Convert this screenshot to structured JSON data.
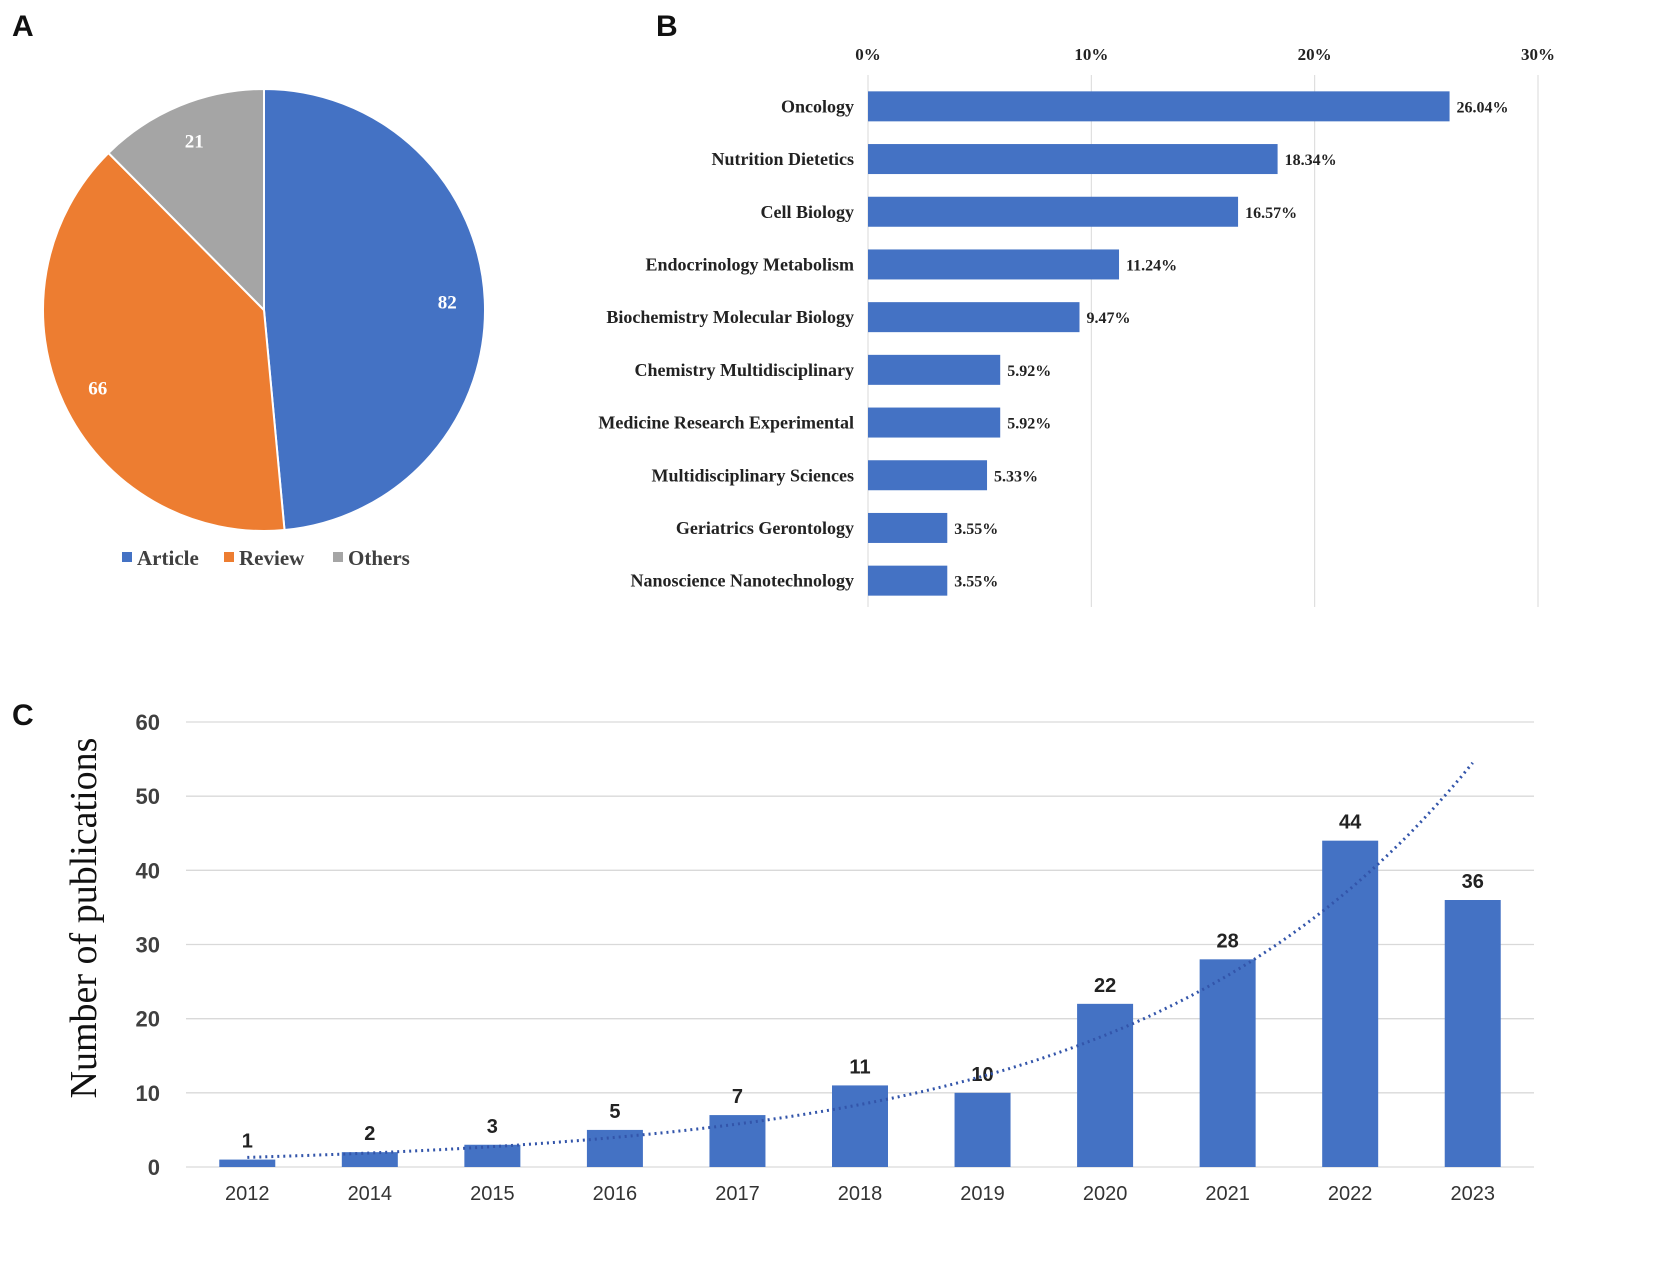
{
  "colors": {
    "blue": "#4472c4",
    "orange": "#ed7d31",
    "gray": "#a5a5a5",
    "grid": "#d9d9d9",
    "text": "#222222"
  },
  "panels": {
    "a": "A",
    "b": "B",
    "c": "C"
  },
  "chart_data": [
    {
      "id": "A",
      "type": "pie",
      "title": "",
      "slices": [
        {
          "label": "Article",
          "value": 82,
          "color": "#4472c4"
        },
        {
          "label": "Review",
          "value": 66,
          "color": "#ed7d31"
        },
        {
          "label": "Others",
          "value": 21,
          "color": "#a5a5a5"
        }
      ],
      "start_angle_deg": 0,
      "direction": "clockwise",
      "legend": "bottom"
    },
    {
      "id": "B",
      "type": "bar",
      "orientation": "horizontal",
      "title": "",
      "xlabel": "",
      "ylabel": "",
      "xlim": [
        0,
        30
      ],
      "ticks": [
        "0%",
        "10%",
        "20%",
        "30%"
      ],
      "tick_values": [
        0,
        10,
        20,
        30
      ],
      "axis_position": "top",
      "grid": true,
      "categories": [
        "Oncology",
        "Nutrition Dietetics",
        "Cell Biology",
        "Endocrinology Metabolism",
        "Biochemistry Molecular Biology",
        "Chemistry Multidisciplinary",
        "Medicine Research Experimental",
        "Multidisciplinary Sciences",
        "Geriatrics Gerontology",
        "Nanoscience Nanotechnology"
      ],
      "values": [
        26.04,
        18.34,
        16.57,
        11.24,
        9.47,
        5.92,
        5.92,
        5.33,
        3.55,
        3.55
      ],
      "value_labels": [
        "26.04%",
        "18.34%",
        "16.57%",
        "11.24%",
        "9.47%",
        "5.92%",
        "5.92%",
        "5.33%",
        "3.55%",
        "3.55%"
      ]
    },
    {
      "id": "C",
      "type": "bar",
      "title": "",
      "xlabel": "",
      "ylabel": "Number of publications",
      "ylim": [
        0,
        60
      ],
      "yticks": [
        0,
        10,
        20,
        30,
        40,
        50,
        60
      ],
      "grid": true,
      "categories": [
        "2012",
        "2014",
        "2015",
        "2016",
        "2017",
        "2018",
        "2019",
        "2020",
        "2021",
        "2022",
        "2023"
      ],
      "values": [
        1,
        2,
        3,
        5,
        7,
        11,
        10,
        22,
        28,
        44,
        36
      ],
      "trendline": {
        "type": "exponential",
        "style": "dotted",
        "start_value": 1.3,
        "end_value": 54.5
      }
    }
  ]
}
